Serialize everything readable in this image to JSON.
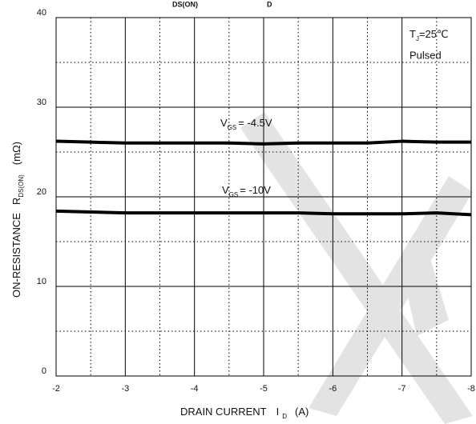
{
  "chart_data": {
    "type": "line",
    "title_fragments": [
      "DS(ON)",
      "D"
    ],
    "x_label": {
      "text": "DRAIN CURRENT",
      "symbol": "I",
      "sub": "D",
      "unit": "(A)"
    },
    "y_label": {
      "text": "ON-RESISTANCE",
      "symbol": "R",
      "sub": "DS(ON)",
      "unit": "(mΩ)"
    },
    "annotations": [
      {
        "text": "T",
        "sub": "J",
        "rest": "=25℃"
      },
      {
        "text": "Pulsed"
      }
    ],
    "x": [
      -2,
      -2.5,
      -3,
      -3.5,
      -4,
      -4.5,
      -5,
      -5.5,
      -6,
      -6.5,
      -7,
      -7.5,
      -8
    ],
    "series": [
      {
        "name": {
          "text": "V",
          "sub": "GS",
          "rest": "= -4.5V"
        },
        "color": "#000000",
        "values": [
          26.2,
          26.1,
          26.0,
          26.0,
          26.0,
          26.0,
          25.9,
          26.0,
          26.0,
          26.0,
          26.2,
          26.1,
          26.1
        ]
      },
      {
        "name": {
          "text": "V",
          "sub": "GS",
          "rest": "= -10V"
        },
        "color": "#000000",
        "values": [
          18.4,
          18.3,
          18.2,
          18.2,
          18.2,
          18.2,
          18.2,
          18.2,
          18.1,
          18.1,
          18.1,
          18.2,
          18.0
        ]
      }
    ],
    "xlim": [
      -2,
      -8
    ],
    "xticks": [
      -2,
      -3,
      -4,
      -5,
      -6,
      -7,
      -8
    ],
    "xminorticks": [
      -2.5,
      -3.5,
      -4.5,
      -5.5,
      -6.5,
      -7.5
    ],
    "ylim": [
      0,
      40
    ],
    "yticks": [
      0,
      10,
      20,
      30,
      40
    ],
    "yminorticks": [
      5,
      15,
      25,
      35
    ],
    "grid": true
  }
}
